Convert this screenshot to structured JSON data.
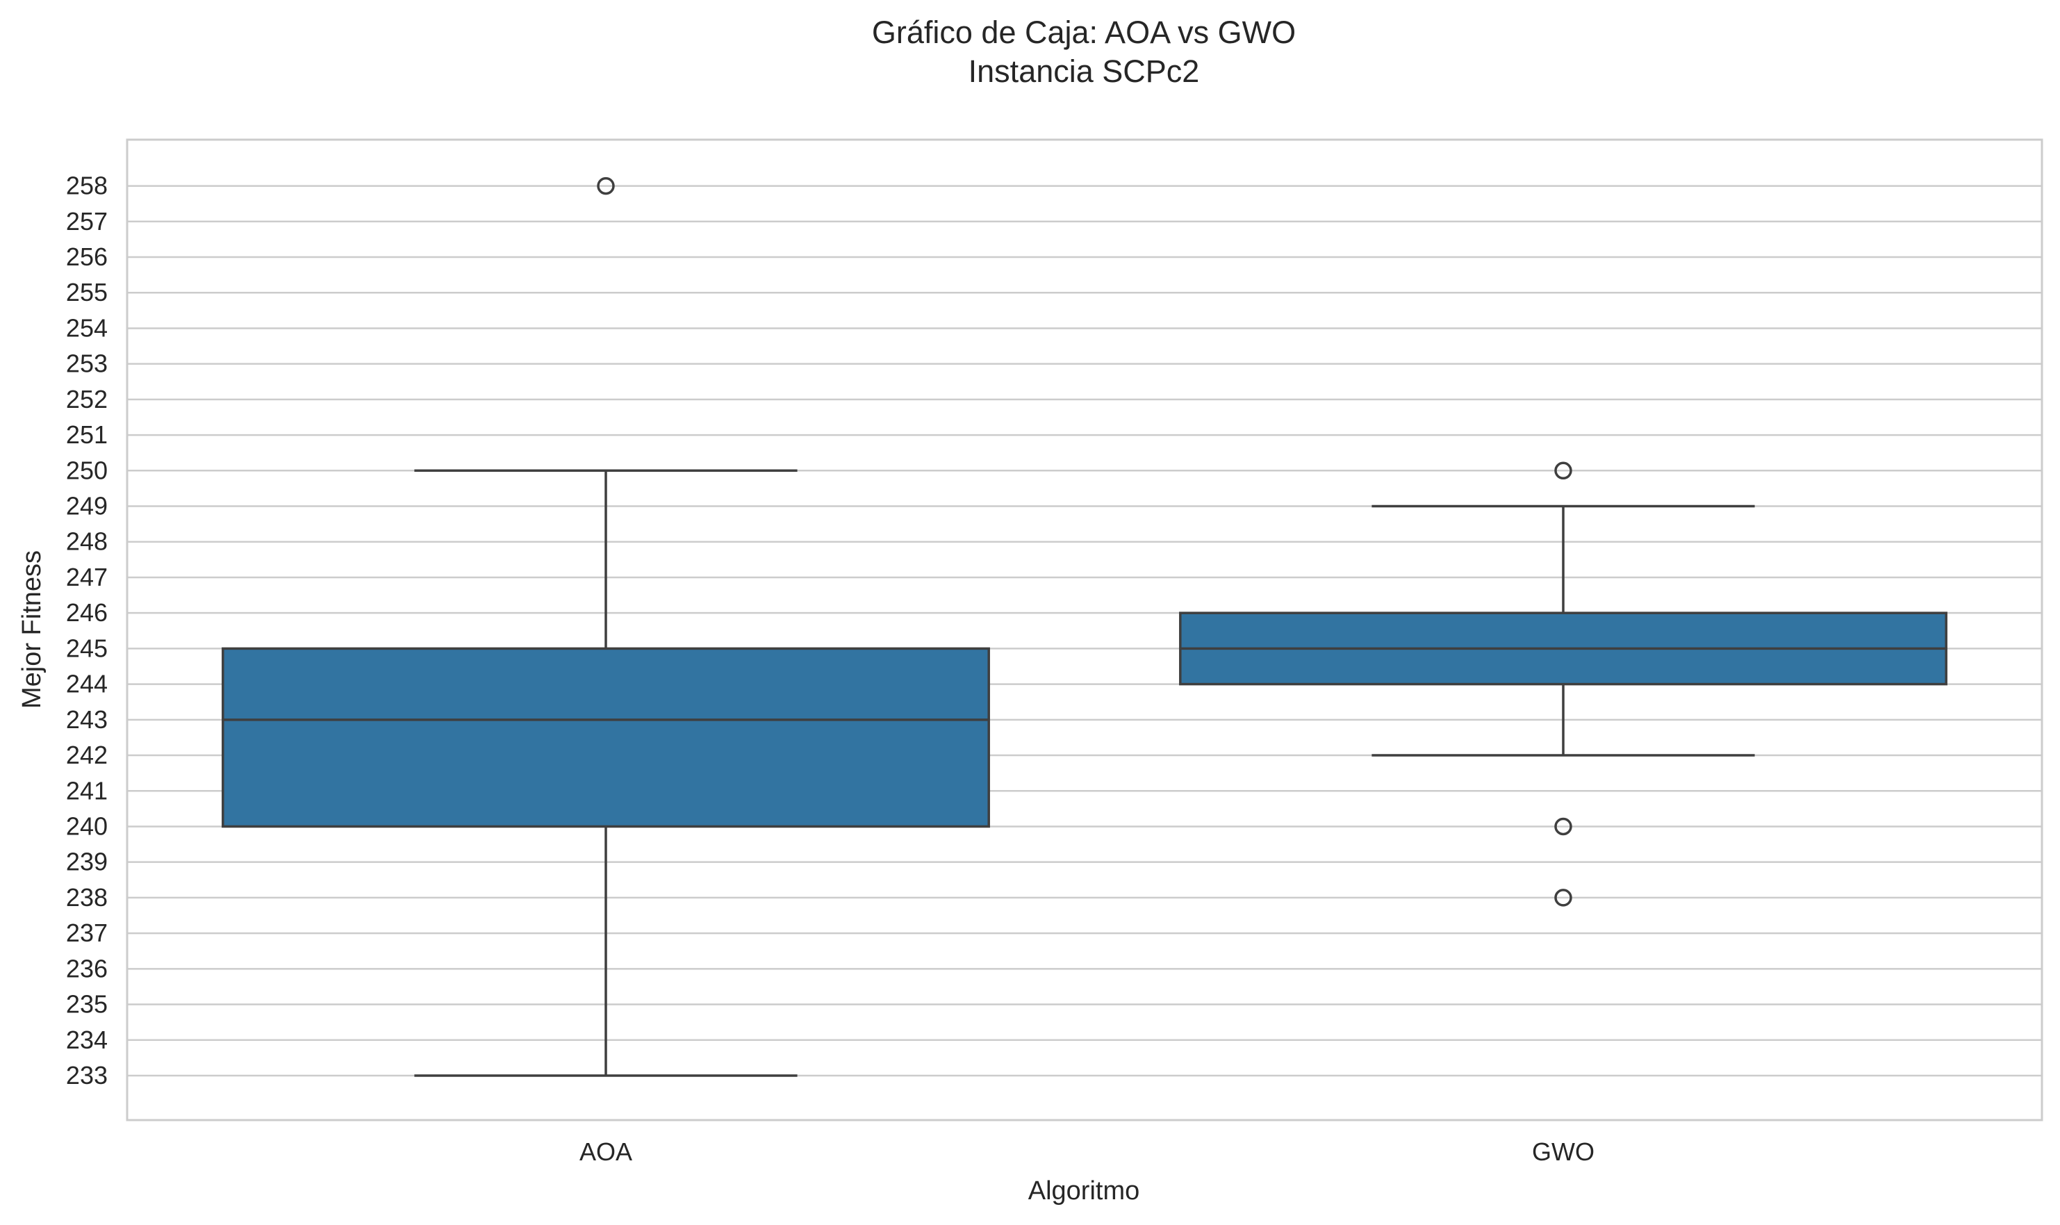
{
  "chart_data": {
    "type": "box",
    "title": "Gráfico de Caja: AOA vs GWO",
    "subtitle": "Instancia SCPc2",
    "xlabel": "Algoritmo",
    "ylabel": "Mejor Fitness",
    "categories": [
      "AOA",
      "GWO"
    ],
    "ylim": [
      231.75,
      259.3
    ],
    "yticks": [
      233,
      234,
      235,
      236,
      237,
      238,
      239,
      240,
      241,
      242,
      243,
      244,
      245,
      246,
      247,
      248,
      249,
      250,
      251,
      252,
      253,
      254,
      255,
      256,
      257,
      258
    ],
    "grid": "horizontal",
    "box_color": "#3274a1",
    "line_color": "#3f3f3f",
    "boxes": [
      {
        "category": "AOA",
        "whisker_low": 233,
        "q1": 240,
        "median": 243,
        "q3": 245,
        "whisker_high": 250,
        "outliers": [
          258
        ]
      },
      {
        "category": "GWO",
        "whisker_low": 242,
        "q1": 244,
        "median": 245,
        "q3": 246,
        "whisker_high": 249,
        "outliers": [
          250,
          240,
          238
        ]
      }
    ]
  }
}
